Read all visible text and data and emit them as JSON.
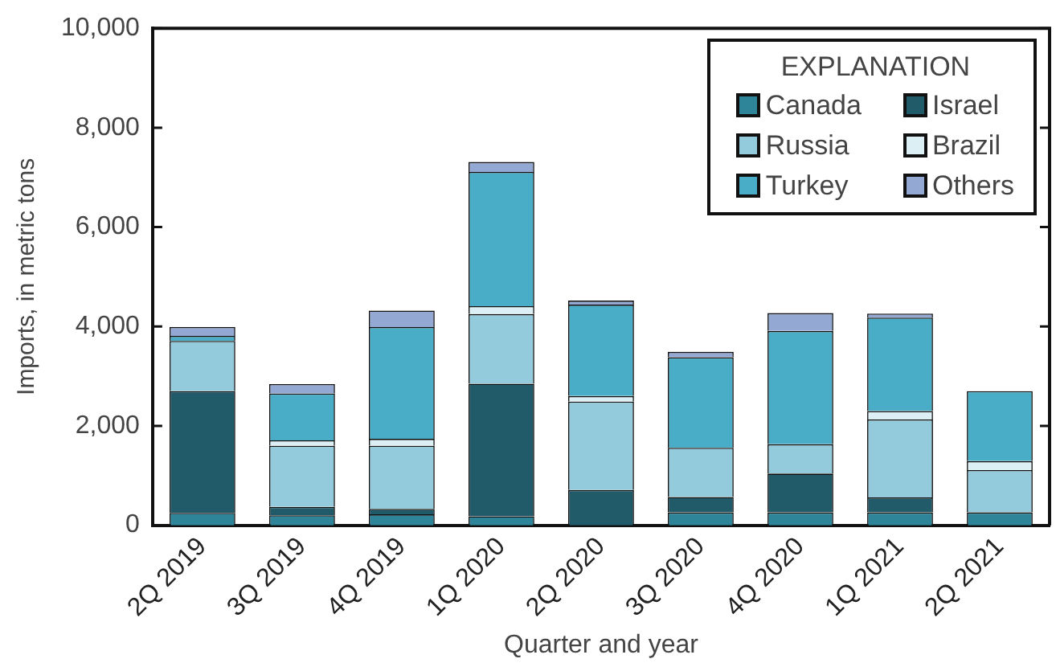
{
  "chart_data": {
    "type": "bar",
    "stacked": true,
    "xlabel": "Quarter and year",
    "ylabel": "Imports, in metric tons",
    "legend_title": "EXPLANATION",
    "legend": "top right",
    "grid": false,
    "categories": [
      "2Q 2019",
      "3Q 2019",
      "4Q 2019",
      "1Q 2020",
      "2Q 2020",
      "3Q 2020",
      "4Q 2020",
      "1Q 2021",
      "2Q 2021"
    ],
    "ylim": [
      0,
      10000
    ],
    "yticks": [
      {
        "value": 0,
        "label": "0"
      },
      {
        "value": 2000,
        "label": "2,000"
      },
      {
        "value": 4000,
        "label": "4,000"
      },
      {
        "value": 6000,
        "label": "6,000"
      },
      {
        "value": 8000,
        "label": "8,000"
      },
      {
        "value": 10000,
        "label": "10,000"
      }
    ],
    "series": [
      {
        "name": "Canada",
        "color": "#2e8499",
        "values": [
          250,
          200,
          220,
          180,
          null,
          260,
          260,
          260,
          260
        ]
      },
      {
        "name": "Israel",
        "color": "#215a69",
        "values": [
          2450,
          170,
          110,
          2670,
          710,
          310,
          780,
          300,
          0
        ]
      },
      {
        "name": "Russia",
        "color": "#94cbdc",
        "values": [
          1010,
          1230,
          1270,
          1400,
          1780,
          990,
          590,
          1570,
          850
        ]
      },
      {
        "name": "Brazil",
        "color": "#dceff5",
        "values": [
          0,
          110,
          140,
          160,
          110,
          0,
          0,
          170,
          180
        ]
      },
      {
        "name": "Turkey",
        "color": "#4aadc7",
        "values": [
          100,
          940,
          2250,
          2700,
          1840,
          1820,
          2280,
          1880,
          1410
        ]
      },
      {
        "name": "Others",
        "color": "#94a8d4",
        "values": [
          180,
          190,
          330,
          200,
          80,
          110,
          360,
          80,
          0
        ]
      }
    ]
  }
}
